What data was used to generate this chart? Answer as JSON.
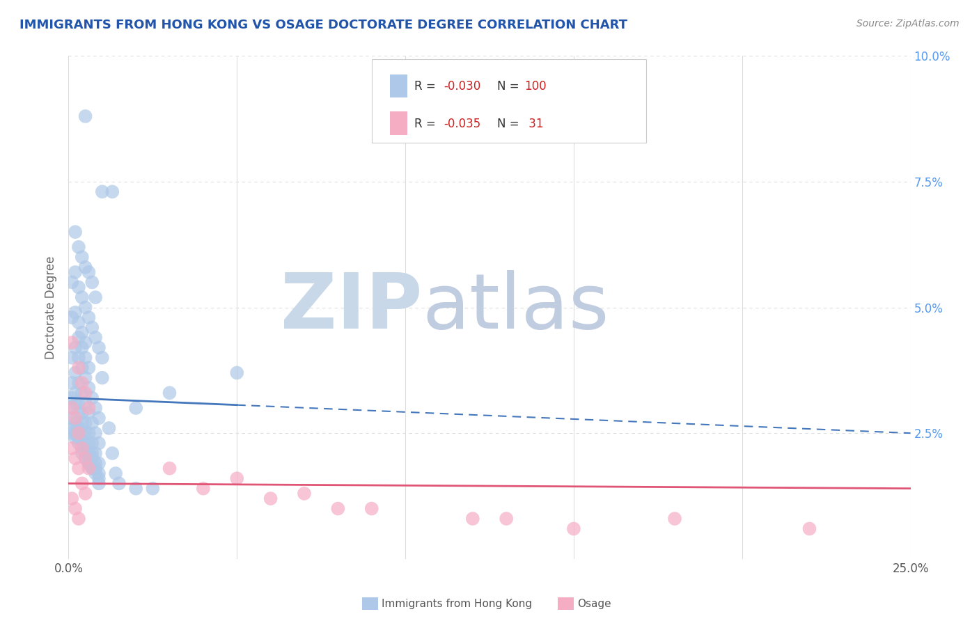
{
  "title": "IMMIGRANTS FROM HONG KONG VS OSAGE DOCTORATE DEGREE CORRELATION CHART",
  "source": "Source: ZipAtlas.com",
  "ylabel": "Doctorate Degree",
  "xlim": [
    0,
    0.25
  ],
  "ylim": [
    0,
    0.1
  ],
  "blue_color": "#adc8e8",
  "pink_color": "#f5adc4",
  "blue_line_color": "#4477bb",
  "pink_line_color": "#e05575",
  "title_color": "#2255aa",
  "axis_label_color": "#666666",
  "tick_color": "#555555",
  "right_tick_color": "#5599ee",
  "watermark_zip_color": "#c8d8e8",
  "watermark_atlas_color": "#c0cce0",
  "background_color": "#ffffff",
  "grid_color": "#dddddd",
  "legend_label1": "Immigrants from Hong Kong",
  "legend_label2": "Osage",
  "blue_scatter_x": [
    0.005,
    0.01,
    0.013,
    0.002,
    0.003,
    0.004,
    0.005,
    0.006,
    0.007,
    0.008,
    0.001,
    0.002,
    0.003,
    0.004,
    0.005,
    0.006,
    0.007,
    0.008,
    0.009,
    0.01,
    0.001,
    0.002,
    0.003,
    0.004,
    0.005,
    0.003,
    0.004,
    0.005,
    0.006,
    0.01,
    0.001,
    0.002,
    0.003,
    0.004,
    0.005,
    0.006,
    0.007,
    0.008,
    0.009,
    0.012,
    0.001,
    0.002,
    0.003,
    0.004,
    0.005,
    0.006,
    0.007,
    0.008,
    0.009,
    0.013,
    0.001,
    0.002,
    0.003,
    0.004,
    0.005,
    0.006,
    0.007,
    0.008,
    0.009,
    0.014,
    0.001,
    0.002,
    0.003,
    0.004,
    0.005,
    0.006,
    0.007,
    0.008,
    0.009,
    0.015,
    0.001,
    0.002,
    0.003,
    0.004,
    0.005,
    0.006,
    0.007,
    0.008,
    0.009,
    0.02,
    0.001,
    0.002,
    0.003,
    0.004,
    0.005,
    0.006,
    0.007,
    0.008,
    0.009,
    0.025,
    0.001,
    0.002,
    0.003,
    0.004,
    0.005,
    0.006,
    0.007,
    0.02,
    0.03,
    0.05
  ],
  "blue_scatter_y": [
    0.088,
    0.073,
    0.073,
    0.065,
    0.062,
    0.06,
    0.058,
    0.057,
    0.055,
    0.052,
    0.055,
    0.057,
    0.054,
    0.052,
    0.05,
    0.048,
    0.046,
    0.044,
    0.042,
    0.04,
    0.048,
    0.049,
    0.047,
    0.045,
    0.043,
    0.044,
    0.042,
    0.04,
    0.038,
    0.036,
    0.04,
    0.042,
    0.04,
    0.038,
    0.036,
    0.034,
    0.032,
    0.03,
    0.028,
    0.026,
    0.035,
    0.037,
    0.035,
    0.033,
    0.031,
    0.029,
    0.027,
    0.025,
    0.023,
    0.021,
    0.032,
    0.033,
    0.031,
    0.029,
    0.027,
    0.025,
    0.023,
    0.021,
    0.019,
    0.017,
    0.03,
    0.031,
    0.029,
    0.027,
    0.025,
    0.023,
    0.021,
    0.019,
    0.017,
    0.015,
    0.028,
    0.027,
    0.026,
    0.025,
    0.023,
    0.021,
    0.02,
    0.018,
    0.016,
    0.014,
    0.026,
    0.025,
    0.024,
    0.022,
    0.021,
    0.019,
    0.018,
    0.017,
    0.015,
    0.014,
    0.025,
    0.024,
    0.023,
    0.021,
    0.02,
    0.019,
    0.018,
    0.03,
    0.033,
    0.037
  ],
  "pink_scatter_x": [
    0.001,
    0.002,
    0.003,
    0.004,
    0.005,
    0.006,
    0.003,
    0.004,
    0.005,
    0.006,
    0.001,
    0.002,
    0.003,
    0.004,
    0.005,
    0.03,
    0.05,
    0.07,
    0.09,
    0.12,
    0.001,
    0.002,
    0.003,
    0.04,
    0.06,
    0.08,
    0.13,
    0.15,
    0.18,
    0.22,
    0.001
  ],
  "pink_scatter_y": [
    0.03,
    0.028,
    0.025,
    0.022,
    0.02,
    0.018,
    0.038,
    0.035,
    0.033,
    0.03,
    0.022,
    0.02,
    0.018,
    0.015,
    0.013,
    0.018,
    0.016,
    0.013,
    0.01,
    0.008,
    0.012,
    0.01,
    0.008,
    0.014,
    0.012,
    0.01,
    0.008,
    0.006,
    0.008,
    0.006,
    0.043
  ],
  "blue_trend_x": [
    0.0,
    0.25
  ],
  "blue_trend_y": [
    0.032,
    0.025
  ],
  "pink_trend_x": [
    0.0,
    0.25
  ],
  "pink_trend_y": [
    0.015,
    0.014
  ]
}
